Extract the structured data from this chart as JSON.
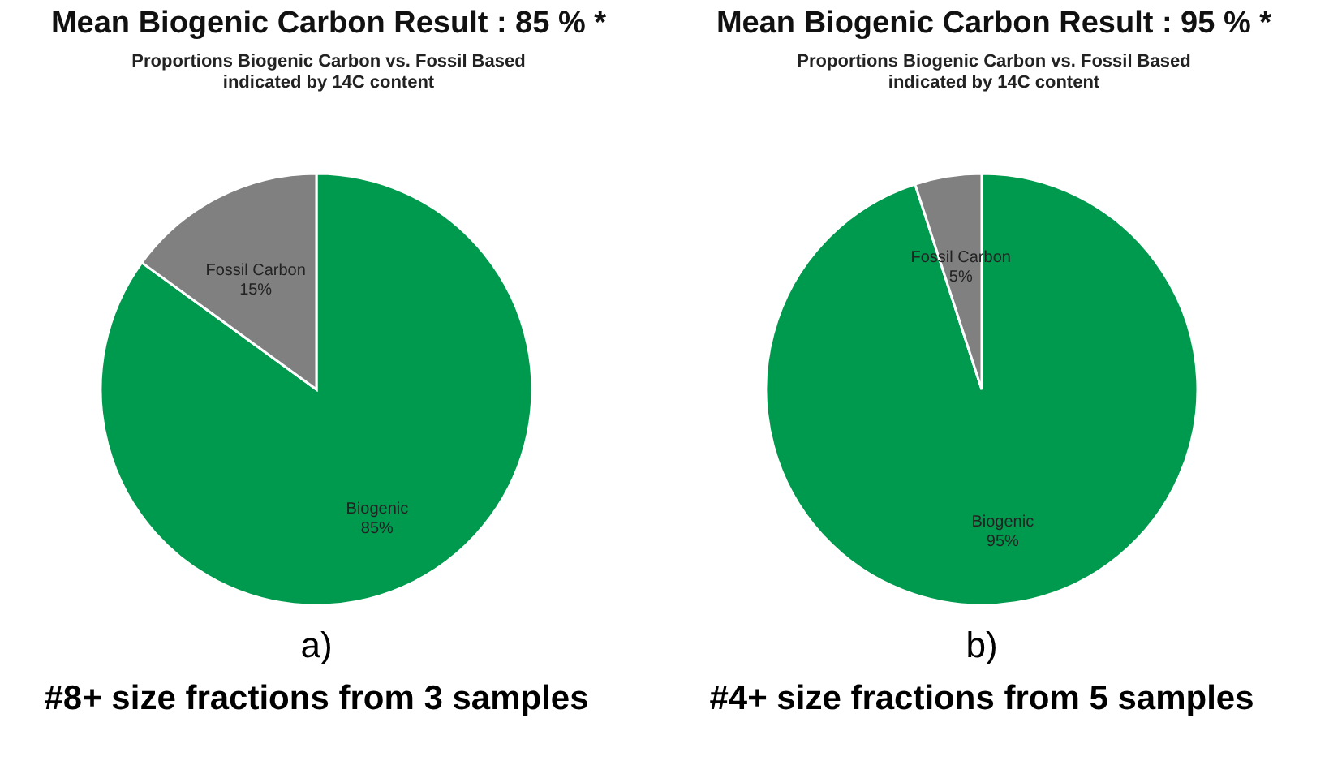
{
  "chart_data": [
    {
      "type": "pie",
      "title": "Mean Biogenic Carbon Result :   85 %  *",
      "subtitle": "Proportions Biogenic Carbon vs. Fossil Based\nindicated by 14C content",
      "categories": [
        "Biogenic",
        "Fossil Carbon"
      ],
      "values": [
        85,
        15
      ],
      "value_labels": [
        "85%",
        "15%"
      ],
      "colors": [
        "#009a4e",
        "#808080"
      ],
      "annotations": [
        "a)",
        "#8+ size fractions from 3 samples"
      ]
    },
    {
      "type": "pie",
      "title": "Mean Biogenic Carbon Result :   95 %  *",
      "subtitle": "Proportions Biogenic Carbon vs. Fossil Based\nindicated by 14C content",
      "categories": [
        "Biogenic",
        "Fossil Carbon"
      ],
      "values": [
        95,
        5
      ],
      "value_labels": [
        "95%",
        "5%"
      ],
      "colors": [
        "#009a4e",
        "#808080"
      ],
      "annotations": [
        "b)",
        "#4+ size fractions from 5 samples"
      ]
    }
  ]
}
